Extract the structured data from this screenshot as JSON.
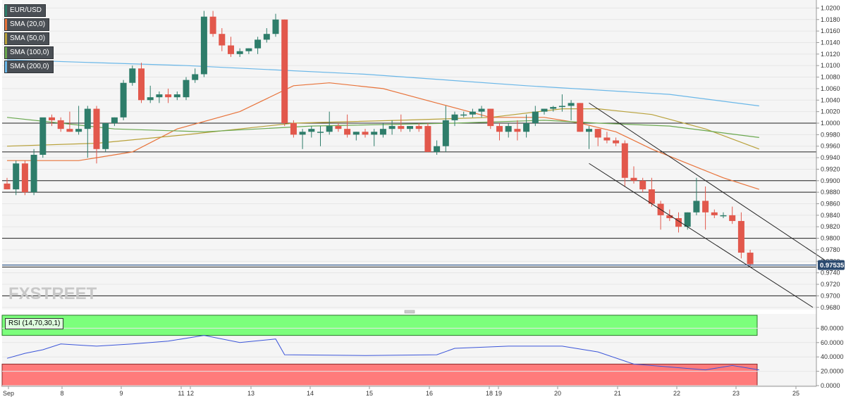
{
  "legend": [
    {
      "label": "EUR/USD",
      "color": "#2e7d6a"
    },
    {
      "label": "SMA (20,0)",
      "color": "#e8733a"
    },
    {
      "label": "SMA (50,0)",
      "color": "#b8a13a"
    },
    {
      "label": "SMA (100,0)",
      "color": "#6aa84f"
    },
    {
      "label": "SMA (200,0)",
      "color": "#6ab7e8"
    }
  ],
  "watermark": "FXSTREET",
  "chart_data": {
    "type": "candlestick",
    "symbol": "EUR/USD",
    "timeframe": "4H",
    "ylim": [
      0.968,
      1.021
    ],
    "price_ticks": [
      "1.0200",
      "1.0180",
      "1.0160",
      "1.0140",
      "1.0120",
      "1.0100",
      "1.0080",
      "1.0060",
      "1.0040",
      "1.0020",
      "1.0000",
      "0.9980",
      "0.9960",
      "0.9940",
      "0.9920",
      "0.9900",
      "0.9880",
      "0.9860",
      "0.9840",
      "0.9820",
      "0.9800",
      "0.9780",
      "0.9760",
      "0.9740",
      "0.9720",
      "0.9700",
      "0.9680"
    ],
    "current_price": "0.97535",
    "current_price_value": 0.97535,
    "horizontal_levels": [
      1.0,
      0.995,
      0.99,
      0.988,
      0.98,
      0.975,
      0.97
    ],
    "date_labels": [
      "Sep",
      "8",
      "9",
      "11",
      "12",
      "13",
      "14",
      "15",
      "16",
      "18",
      "19",
      "20",
      "21",
      "22",
      "23",
      "25"
    ],
    "candles": [
      [
        0.9895,
        0.9905,
        0.9885,
        0.9885
      ],
      [
        0.9885,
        0.9935,
        0.9875,
        0.993
      ],
      [
        0.993,
        0.9935,
        0.9875,
        0.988
      ],
      [
        0.988,
        0.9955,
        0.9875,
        0.9945
      ],
      [
        0.9945,
        1.0005,
        0.994,
        1.001
      ],
      [
        1.001,
        1.0015,
        0.9995,
        1.0005
      ],
      [
        1.0005,
        1.001,
        0.9985,
        0.999
      ],
      [
        0.999,
        1.002,
        0.9985,
        0.9985
      ],
      [
        0.9985,
        1.003,
        0.998,
        0.999
      ],
      [
        0.999,
        1.003,
        0.994,
        1.0025
      ],
      [
        1.0025,
        1.003,
        0.993,
        0.9955
      ],
      [
        0.9955,
        1.0,
        0.995,
        1.0
      ],
      [
        1.0,
        1.001,
        0.9995,
        1.001
      ],
      [
        1.001,
        1.0075,
        1.0005,
        1.007
      ],
      [
        1.007,
        1.01,
        1.0065,
        1.0095
      ],
      [
        1.0095,
        1.0105,
        1.0035,
        1.004
      ],
      [
        1.004,
        1.0065,
        1.0035,
        1.0045
      ],
      [
        1.0045,
        1.0055,
        1.0035,
        1.005
      ],
      [
        1.005,
        1.006,
        1.0035,
        1.0045
      ],
      [
        1.0045,
        1.0055,
        1.004,
        1.005
      ],
      [
        1.0045,
        1.008,
        1.004,
        1.0075
      ],
      [
        1.0075,
        1.0095,
        1.007,
        1.0085
      ],
      [
        1.0085,
        1.0195,
        1.008,
        1.0185
      ],
      [
        1.0185,
        1.0195,
        1.015,
        1.0155
      ],
      [
        1.0155,
        1.0165,
        1.0125,
        1.0135
      ],
      [
        1.0135,
        1.015,
        1.0115,
        1.012
      ],
      [
        1.012,
        1.013,
        1.0115,
        1.0125
      ],
      [
        1.0125,
        1.013,
        1.012,
        1.013
      ],
      [
        1.013,
        1.015,
        1.012,
        1.0145
      ],
      [
        1.0145,
        1.0165,
        1.014,
        1.0155
      ],
      [
        1.0155,
        1.019,
        1.015,
        1.018
      ],
      [
        1.018,
        1.018,
        0.9995,
        1.0
      ],
      [
        1.0,
        1.0005,
        0.9975,
        0.998
      ],
      [
        0.998,
        0.999,
        0.9955,
        0.9985
      ],
      [
        0.9985,
        0.9995,
        0.9975,
        0.999
      ],
      [
        0.9985,
        0.9995,
        0.996,
        0.9985
      ],
      [
        0.9985,
        1.002,
        0.998,
        0.9995
      ],
      [
        0.9995,
        1.0,
        0.9985,
        0.999
      ],
      [
        0.999,
        1.0015,
        0.9975,
        0.998
      ],
      [
        0.998,
        0.9985,
        0.997,
        0.9985
      ],
      [
        0.9985,
        0.999,
        0.9975,
        0.998
      ],
      [
        0.998,
        0.999,
        0.996,
        0.9985
      ],
      [
        0.998,
        1.0,
        0.9975,
        0.999
      ],
      [
        0.999,
        1.0005,
        0.998,
        0.9995
      ],
      [
        0.9995,
        1.0015,
        0.9985,
        0.999
      ],
      [
        0.999,
        0.9995,
        0.9985,
        0.9995
      ],
      [
        0.9995,
        1.0,
        0.9985,
        0.999
      ],
      [
        0.9995,
        1.0,
        0.995,
        0.995
      ],
      [
        0.995,
        0.997,
        0.9945,
        0.996
      ],
      [
        0.996,
        1.003,
        0.995,
        1.0005
      ],
      [
        1.0005,
        1.002,
        0.9995,
        1.0015
      ],
      [
        1.0015,
        1.002,
        1.001,
        1.0015
      ],
      [
        1.0015,
        1.0025,
        1.001,
        1.002
      ],
      [
        1.002,
        1.003,
        1.001,
        1.0025
      ],
      [
        1.0025,
        1.0025,
        0.999,
        0.9995
      ],
      [
        0.9995,
        1.0,
        0.997,
        0.9985
      ],
      [
        0.9985,
        1.0,
        0.9975,
        0.9995
      ],
      [
        0.999,
        1.0005,
        0.997,
        0.9985
      ],
      [
        0.9985,
        1.0015,
        0.9975,
        1.0
      ],
      [
        1.0,
        1.003,
        0.9995,
        1.002
      ],
      [
        1.002,
        1.0025,
        1.0015,
        1.0025
      ],
      [
        1.0025,
        1.003,
        1.002,
        1.0028
      ],
      [
        1.0028,
        1.005,
        1.002,
        1.003
      ],
      [
        1.003,
        1.004,
        1.0005,
        1.0035
      ],
      [
        1.0035,
        1.0035,
        0.9985,
        0.9985
      ],
      [
        0.9985,
        0.9995,
        0.9955,
        0.999
      ],
      [
        0.999,
        0.999,
        0.996,
        0.9975
      ],
      [
        0.9975,
        0.9985,
        0.9965,
        0.997
      ],
      [
        0.997,
        0.9975,
        0.996,
        0.9965
      ],
      [
        0.9965,
        0.997,
        0.989,
        0.9905
      ],
      [
        0.9905,
        0.9925,
        0.9895,
        0.99
      ],
      [
        0.99,
        0.9905,
        0.988,
        0.9885
      ],
      [
        0.9885,
        0.9905,
        0.9855,
        0.986
      ],
      [
        0.986,
        0.9865,
        0.9815,
        0.984
      ],
      [
        0.984,
        0.985,
        0.983,
        0.9835
      ],
      [
        0.9835,
        0.9845,
        0.981,
        0.982
      ],
      [
        0.982,
        0.9845,
        0.9815,
        0.9845
      ],
      [
        0.9845,
        0.9905,
        0.984,
        0.9865
      ],
      [
        0.9865,
        0.989,
        0.9815,
        0.9845
      ],
      [
        0.9845,
        0.985,
        0.9835,
        0.984
      ],
      [
        0.984,
        0.9845,
        0.9835,
        0.984
      ],
      [
        0.984,
        0.9855,
        0.9825,
        0.983
      ],
      [
        0.983,
        0.9845,
        0.9765,
        0.9775
      ],
      [
        0.9775,
        0.978,
        0.975,
        0.9755
      ]
    ],
    "sma_series": [
      {
        "name": "SMA (20,0)",
        "color": "#e8733a",
        "points": [
          [
            0,
            0.9935
          ],
          [
            8,
            0.9935
          ],
          [
            14,
            0.995
          ],
          [
            19,
            0.999
          ],
          [
            26,
            1.002
          ],
          [
            32,
            1.0065
          ],
          [
            36,
            1.007
          ],
          [
            42,
            1.006
          ],
          [
            48,
            1.0035
          ],
          [
            54,
            1.001
          ],
          [
            60,
            1.001
          ],
          [
            64,
            1.0
          ],
          [
            68,
            0.9985
          ],
          [
            72,
            0.9955
          ],
          [
            76,
            0.993
          ],
          [
            80,
            0.9905
          ],
          [
            84,
            0.9885
          ]
        ]
      },
      {
        "name": "SMA (50,0)",
        "color": "#b8a13a",
        "points": [
          [
            0,
            0.996
          ],
          [
            10,
            0.9965
          ],
          [
            20,
            0.998
          ],
          [
            32,
            1.0
          ],
          [
            44,
            1.0005
          ],
          [
            54,
            1.001
          ],
          [
            62,
            1.0025
          ],
          [
            66,
            1.0025
          ],
          [
            72,
            1.0015
          ],
          [
            78,
            0.999
          ],
          [
            84,
            0.9955
          ]
        ]
      },
      {
        "name": "SMA (100,0)",
        "color": "#6aa84f",
        "points": [
          [
            0,
            1.001
          ],
          [
            12,
            0.999
          ],
          [
            22,
            0.9985
          ],
          [
            34,
            0.9995
          ],
          [
            50,
            1.0
          ],
          [
            60,
            1.0005
          ],
          [
            66,
            1.0
          ],
          [
            74,
            0.9995
          ],
          [
            84,
            0.9975
          ]
        ]
      },
      {
        "name": "SMA (200,0)",
        "color": "#6ab7e8",
        "points": [
          [
            0,
            1.011
          ],
          [
            20,
            1.01
          ],
          [
            40,
            1.0085
          ],
          [
            58,
            1.0065
          ],
          [
            74,
            1.005
          ],
          [
            84,
            1.003
          ]
        ]
      }
    ],
    "channel_lines": [
      {
        "from": [
          65.0,
          1.0035
        ],
        "to": [
          92.5,
          0.975
        ]
      },
      {
        "from": [
          65.0,
          0.993
        ],
        "to": [
          90.0,
          0.968
        ]
      }
    ],
    "rsi": {
      "label": "RSI (14,70,30,1)",
      "ticks": [
        "80.0000",
        "60.0000",
        "40.0000",
        "20.0000",
        "0.0000"
      ],
      "overbought": 70,
      "oversold": 30,
      "values": [
        [
          0,
          38
        ],
        [
          2,
          45
        ],
        [
          4,
          50
        ],
        [
          6,
          58
        ],
        [
          10,
          55
        ],
        [
          14,
          58
        ],
        [
          18,
          62
        ],
        [
          22,
          70
        ],
        [
          26,
          60
        ],
        [
          30,
          65
        ],
        [
          31,
          43
        ],
        [
          40,
          42
        ],
        [
          48,
          43
        ],
        [
          50,
          52
        ],
        [
          56,
          55
        ],
        [
          62,
          55
        ],
        [
          66,
          47
        ],
        [
          70,
          30
        ],
        [
          78,
          22
        ],
        [
          81,
          28
        ],
        [
          84,
          22
        ]
      ]
    }
  }
}
